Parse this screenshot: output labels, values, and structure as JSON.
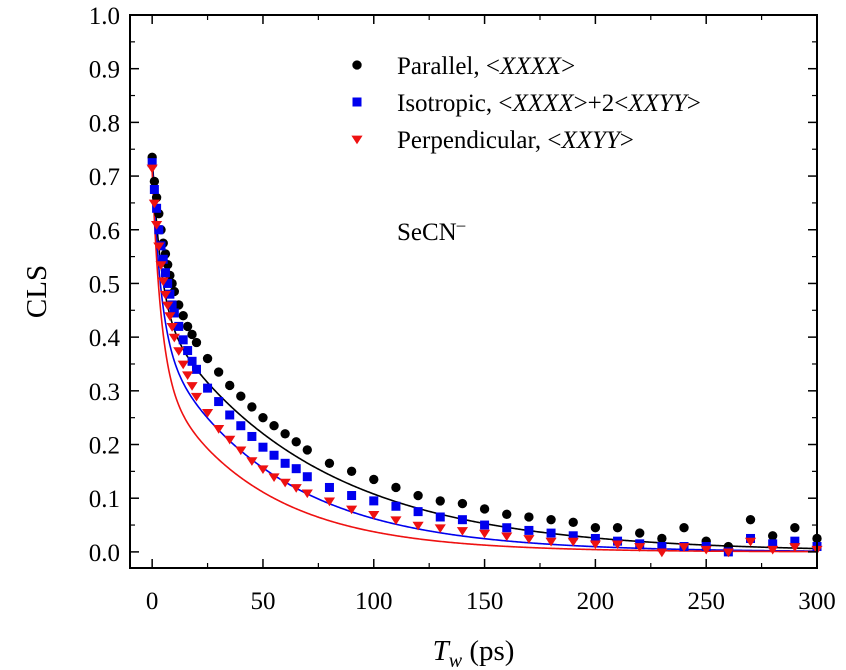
{
  "chart_data": {
    "type": "scatter",
    "xlabel_main": "T",
    "xlabel_sub": "w",
    "xlabel_unit": " (ps)",
    "ylabel": "CLS",
    "xlim": [
      -10,
      300
    ],
    "ylim": [
      -0.03,
      1.0
    ],
    "xticks": [
      0,
      50,
      100,
      150,
      200,
      250,
      300
    ],
    "yticks": [
      0.0,
      0.1,
      0.2,
      0.3,
      0.4,
      0.5,
      0.6,
      0.7,
      0.8,
      0.9,
      1.0
    ],
    "grid": false,
    "legend_position": "top-right",
    "annotation": {
      "main": "SeCN",
      "sup": "–"
    },
    "series": [
      {
        "name": "Parallel, <XXXX>",
        "legend_parts": [
          "Parallel, <",
          "XXXX",
          ">"
        ],
        "legend_italic": [
          false,
          true,
          false
        ],
        "marker": "circle",
        "color": "#000000",
        "fit": {
          "a1": 0.29,
          "t1": 4.0,
          "a2": 0.45,
          "t2": 70.0
        },
        "x": [
          0,
          1,
          2,
          3,
          4,
          5,
          6,
          7,
          8,
          9,
          10,
          12,
          14,
          16,
          18,
          20,
          25,
          30,
          35,
          40,
          45,
          50,
          55,
          60,
          65,
          70,
          80,
          90,
          100,
          110,
          120,
          130,
          140,
          150,
          160,
          170,
          180,
          190,
          200,
          210,
          220,
          230,
          240,
          250,
          260,
          270,
          280,
          290,
          300
        ],
        "y": [
          0.735,
          0.69,
          0.66,
          0.63,
          0.6,
          0.575,
          0.555,
          0.535,
          0.515,
          0.5,
          0.485,
          0.46,
          0.44,
          0.42,
          0.405,
          0.39,
          0.36,
          0.335,
          0.31,
          0.29,
          0.27,
          0.25,
          0.235,
          0.22,
          0.205,
          0.19,
          0.165,
          0.15,
          0.135,
          0.12,
          0.105,
          0.095,
          0.09,
          0.08,
          0.07,
          0.065,
          0.06,
          0.055,
          0.045,
          0.045,
          0.035,
          0.025,
          0.045,
          0.02,
          0.01,
          0.06,
          0.03,
          0.045,
          0.025
        ]
      },
      {
        "name": "Isotropic, <XXXX>+2<XXYY>",
        "legend_parts": [
          "Isotropic, <",
          "XXXX",
          ">+2<",
          "XXYY",
          ">"
        ],
        "legend_italic": [
          false,
          true,
          false,
          true,
          false
        ],
        "marker": "square",
        "color": "#0000ee",
        "fit": {
          "a1": 0.33,
          "t1": 4.0,
          "a2": 0.395,
          "t2": 54.0
        },
        "x": [
          0,
          1,
          2,
          3,
          4,
          5,
          6,
          7,
          8,
          9,
          10,
          12,
          14,
          16,
          18,
          20,
          25,
          30,
          35,
          40,
          45,
          50,
          55,
          60,
          65,
          70,
          80,
          90,
          100,
          110,
          120,
          130,
          140,
          150,
          160,
          170,
          180,
          190,
          200,
          210,
          220,
          230,
          240,
          250,
          260,
          270,
          280,
          290,
          300
        ],
        "y": [
          0.725,
          0.675,
          0.64,
          0.6,
          0.57,
          0.545,
          0.52,
          0.5,
          0.48,
          0.46,
          0.445,
          0.42,
          0.395,
          0.375,
          0.355,
          0.34,
          0.305,
          0.28,
          0.255,
          0.235,
          0.215,
          0.195,
          0.18,
          0.165,
          0.155,
          0.14,
          0.12,
          0.105,
          0.095,
          0.085,
          0.075,
          0.065,
          0.06,
          0.05,
          0.045,
          0.04,
          0.035,
          0.03,
          0.025,
          0.02,
          0.015,
          0.01,
          0.01,
          0.01,
          0.0,
          0.025,
          0.015,
          0.02,
          0.01
        ]
      },
      {
        "name": "Perpendicular, <XXYY>",
        "legend_parts": [
          "Perpendicular, <",
          "XXYY",
          ">"
        ],
        "legend_italic": [
          false,
          true,
          false
        ],
        "marker": "triangle-down",
        "color": "#ee1111",
        "fit": {
          "a1": 0.38,
          "t1": 4.0,
          "a2": 0.33,
          "t2": 46.0
        },
        "x": [
          0,
          1,
          2,
          3,
          4,
          5,
          6,
          7,
          8,
          9,
          10,
          12,
          14,
          16,
          18,
          20,
          25,
          30,
          35,
          40,
          45,
          50,
          55,
          60,
          65,
          70,
          80,
          90,
          100,
          110,
          120,
          130,
          140,
          150,
          160,
          170,
          180,
          190,
          200,
          210,
          220,
          230,
          240,
          250,
          260,
          270,
          280,
          290,
          300
        ],
        "y": [
          0.715,
          0.65,
          0.61,
          0.57,
          0.535,
          0.505,
          0.48,
          0.46,
          0.44,
          0.42,
          0.4,
          0.375,
          0.35,
          0.33,
          0.31,
          0.29,
          0.26,
          0.23,
          0.21,
          0.19,
          0.17,
          0.155,
          0.14,
          0.13,
          0.12,
          0.11,
          0.095,
          0.08,
          0.07,
          0.06,
          0.05,
          0.045,
          0.04,
          0.035,
          0.03,
          0.025,
          0.02,
          0.02,
          0.015,
          0.015,
          0.01,
          0.0,
          0.01,
          0.005,
          0.0,
          0.02,
          0.005,
          0.01,
          0.005
        ]
      }
    ]
  }
}
